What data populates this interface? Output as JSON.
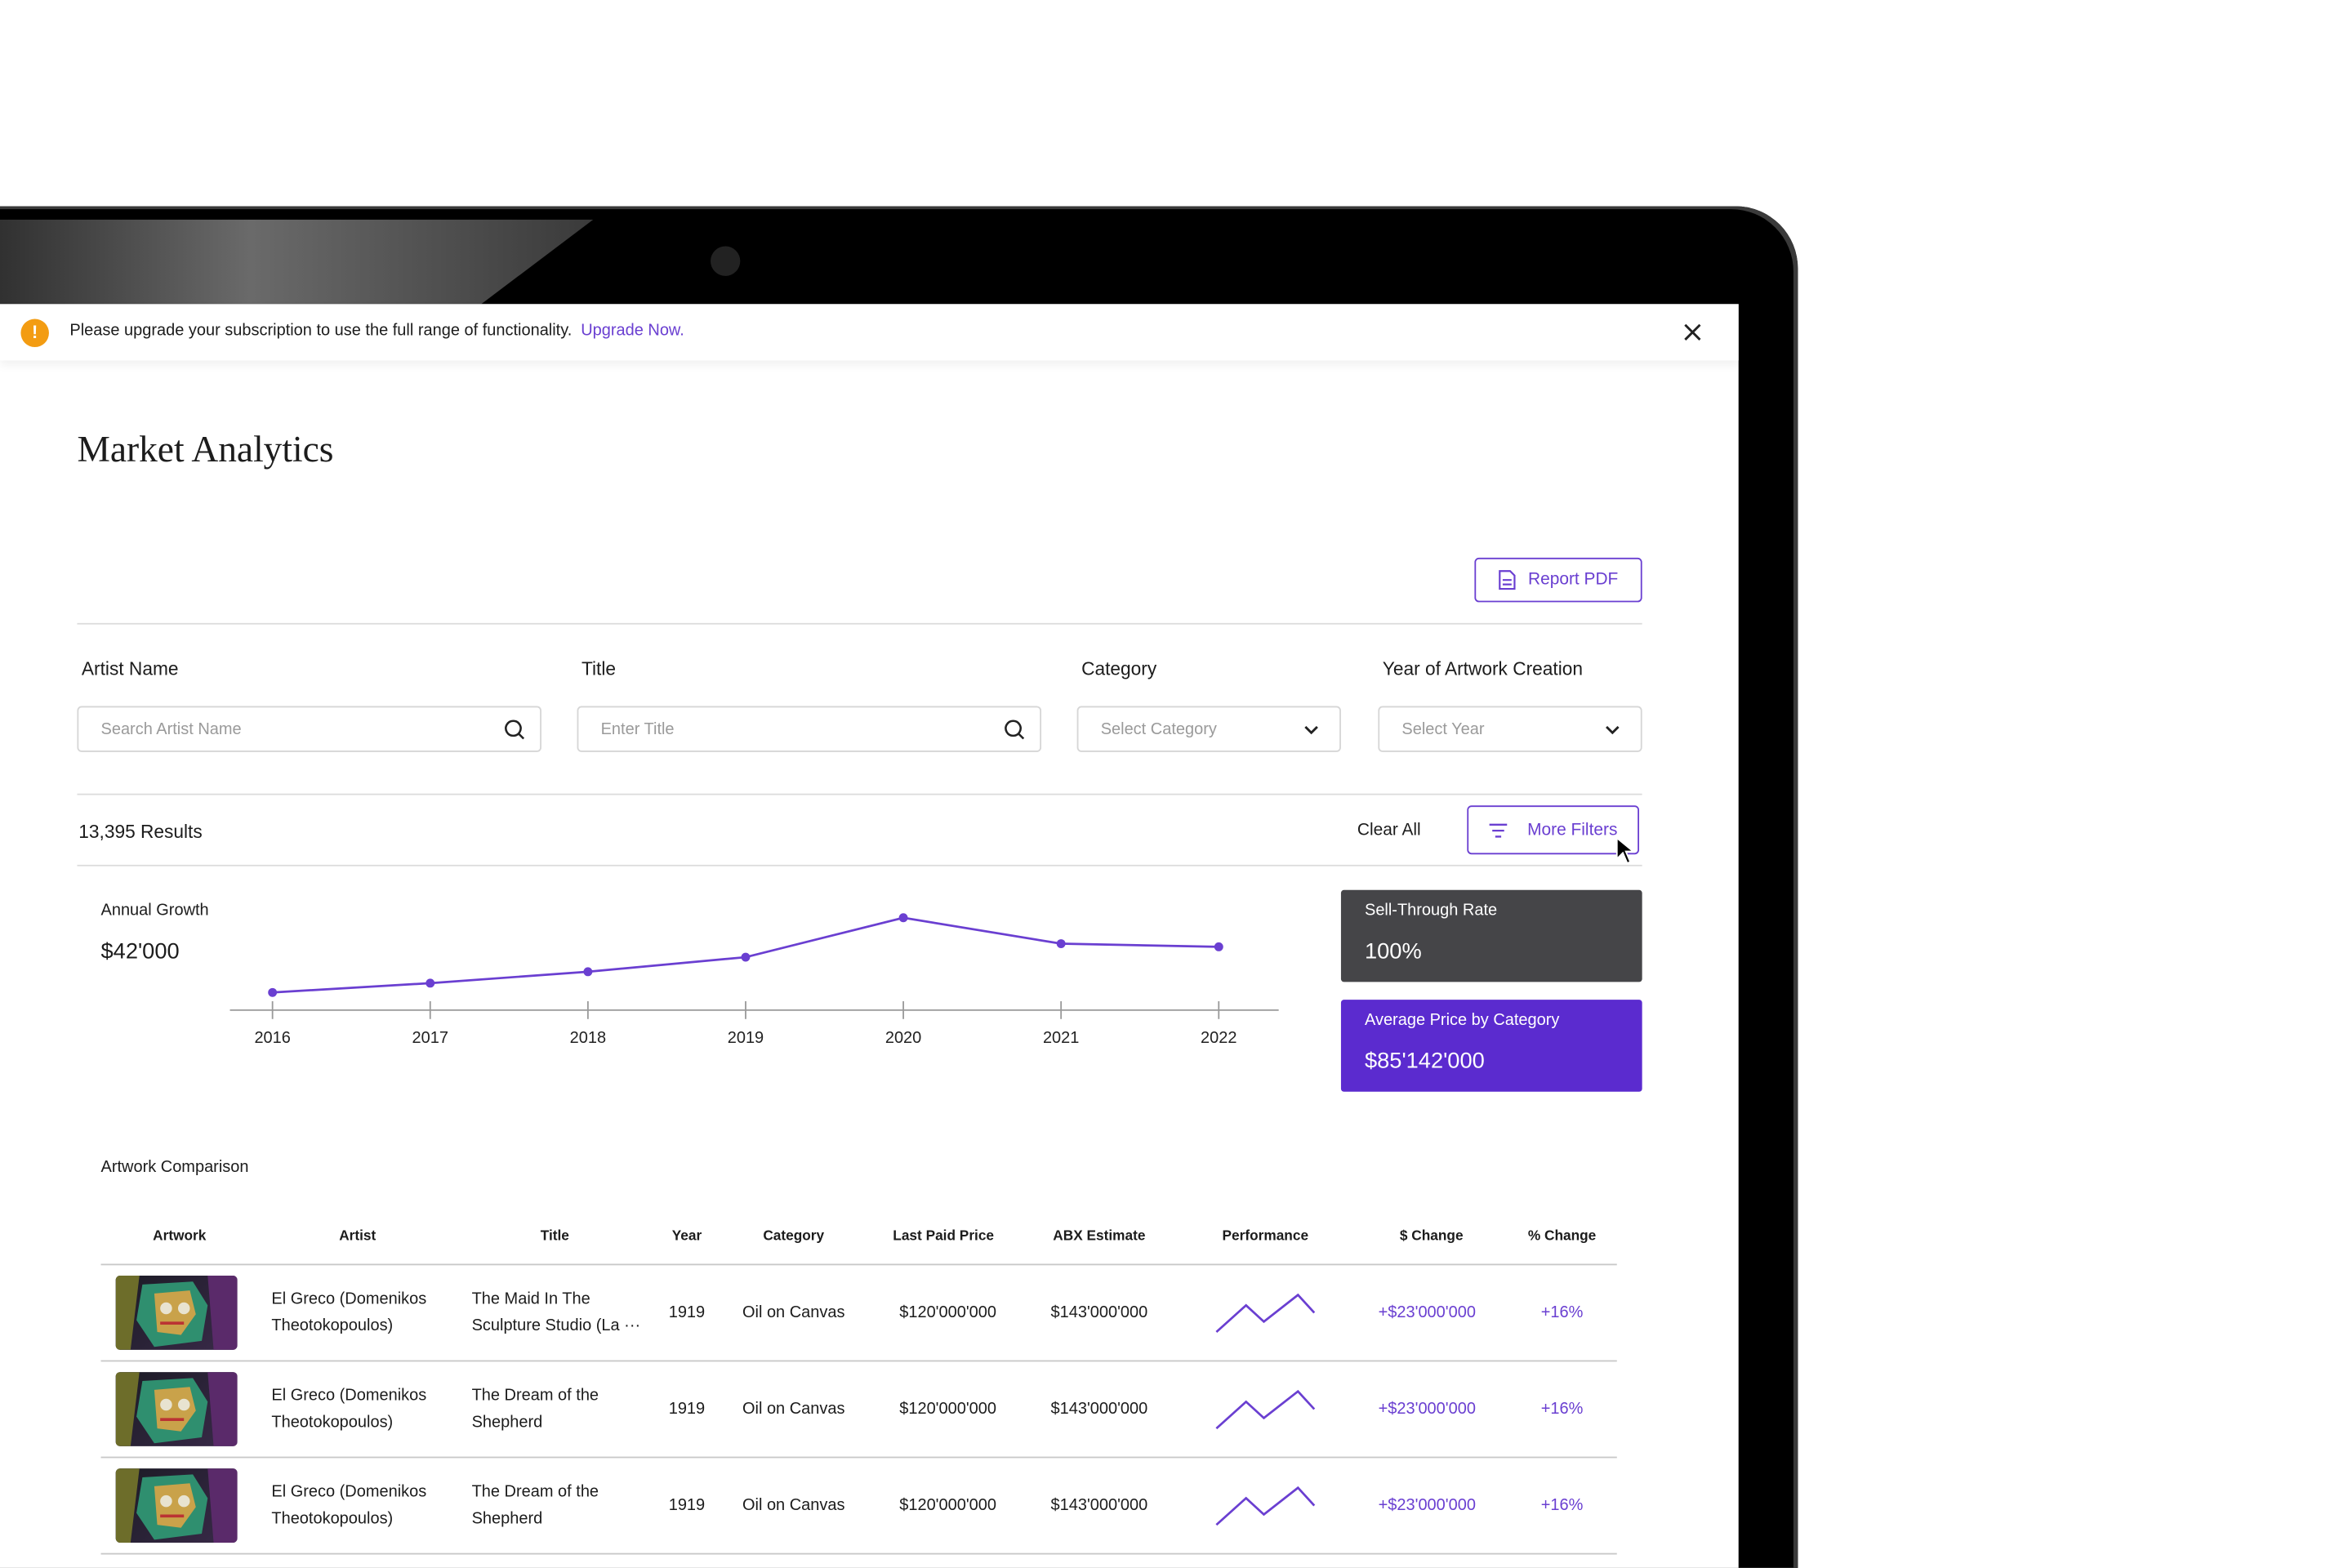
{
  "banner": {
    "message": "Please upgrade your subscription to use the full range of functionality.",
    "link": "Upgrade Now."
  },
  "header": {
    "title": "Market Analytics",
    "report_button": "Report PDF"
  },
  "filters": [
    {
      "label": "Artist Name",
      "placeholder": "Search Artist Name"
    },
    {
      "label": "Title",
      "placeholder": "Enter Title"
    },
    {
      "label": "Category",
      "placeholder": "Select Category"
    },
    {
      "label": "Year of Artwork Creation",
      "placeholder": "Select Year"
    }
  ],
  "results": {
    "count": "13,395 Results",
    "clear": "Clear All",
    "more_filters": "More Filters"
  },
  "chart_data": {
    "type": "line",
    "title": "Annual Growth",
    "subtitle": "$42'000",
    "x": [
      2016,
      2017,
      2018,
      2019,
      2020,
      2021,
      2022
    ],
    "values": [
      17,
      26,
      37,
      51,
      89,
      64,
      61
    ],
    "xlim": [
      2015.73,
      2022.38
    ],
    "xticks": [
      2016,
      2017,
      2018,
      2019,
      2020,
      2021,
      2022
    ],
    "ylim": [
      0,
      100
    ],
    "color": "#6a3fd1"
  },
  "kpis": [
    {
      "label": "Sell-Through Rate",
      "value": "100%"
    },
    {
      "label": "Average Price by Category",
      "value": "$85'142'000"
    }
  ],
  "table": {
    "title": "Artwork Comparison",
    "columns": [
      "Artwork",
      "Artist",
      "Title",
      "Year",
      "Category",
      "Last Paid Price",
      "ABX Estimate",
      "Performance",
      "$ Change",
      "% Change"
    ],
    "rows": [
      {
        "artist": "El Greco (Domenikos Theotokopoulos)",
        "title": "The Maid In The Sculpture Studio (La ···",
        "year": 1919,
        "category": "Oil on Canvas",
        "last_paid": "$120'000'000",
        "estimate": "$143'000'000",
        "performance": [
          0,
          18,
          7,
          25,
          13
        ],
        "change": "+$23'000'000",
        "pct_change": "+16%"
      },
      {
        "artist": "El Greco (Domenikos Theotokopoulos)",
        "title": "The Dream of the Shepherd",
        "year": 1919,
        "category": "Oil on Canvas",
        "last_paid": "$120'000'000",
        "estimate": "$143'000'000",
        "performance": [
          0,
          18,
          7,
          25,
          13
        ],
        "change": "+$23'000'000",
        "pct_change": "+16%"
      },
      {
        "artist": "El Greco (Domenikos Theotokopoulos)",
        "title": "The Dream of the Shepherd",
        "year": 1919,
        "category": "Oil on Canvas",
        "last_paid": "$120'000'000",
        "estimate": "$143'000'000",
        "performance": [
          0,
          18,
          7,
          25,
          13
        ],
        "change": "+$23'000'000",
        "pct_change": "+16%"
      }
    ]
  }
}
